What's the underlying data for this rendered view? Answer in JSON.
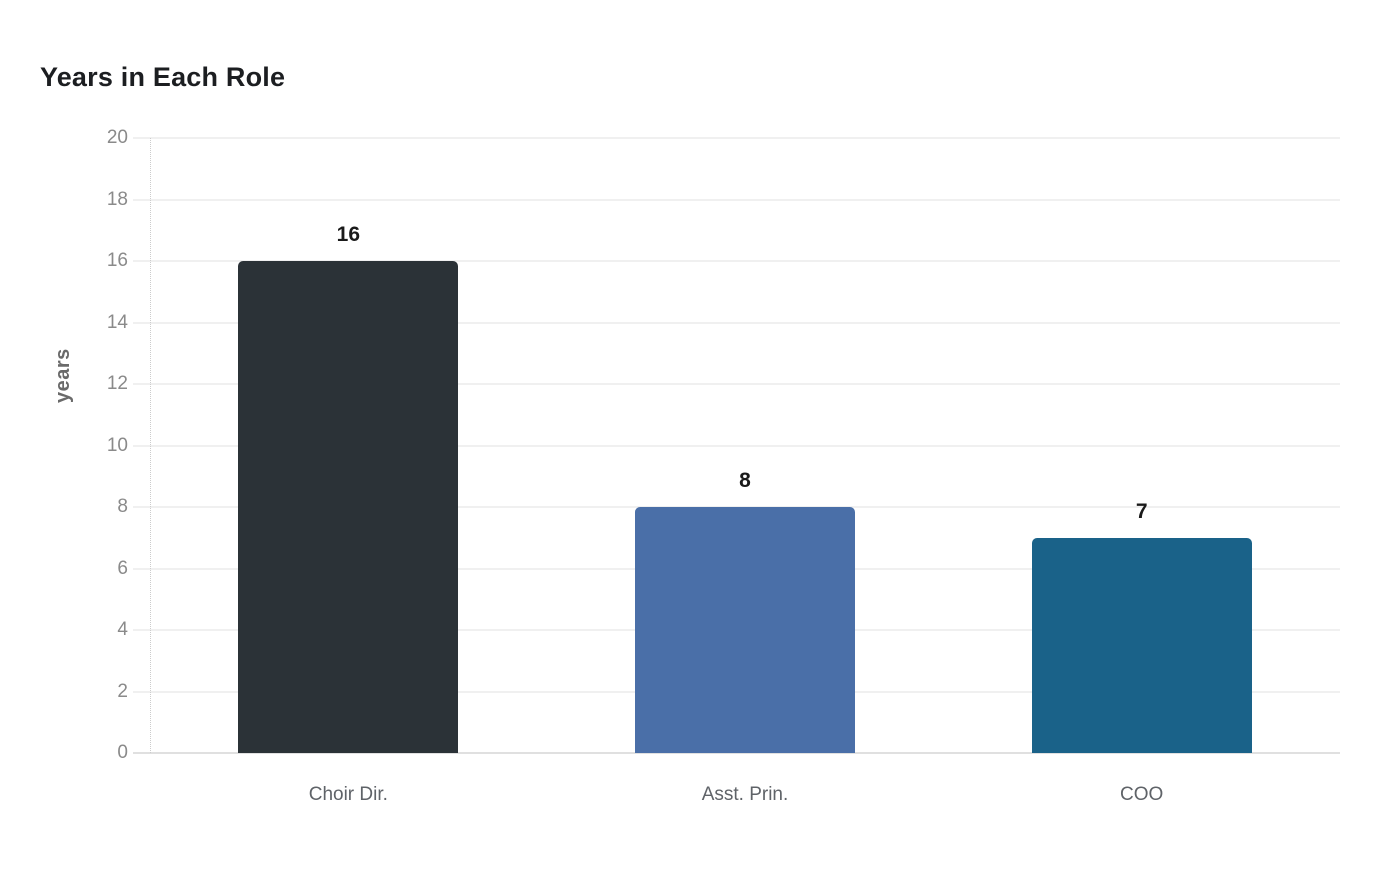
{
  "page": {
    "background": "#ffffff"
  },
  "chart_data": {
    "type": "bar",
    "title": "Years in Each Role",
    "categories": [
      "Choir Dir.",
      "Asst. Prin.",
      "COO"
    ],
    "values": [
      16,
      8,
      7
    ],
    "value_labels": [
      "16",
      "8",
      "7"
    ],
    "bar_colors": [
      "#2b3237",
      "#4a6fa8",
      "#1a6289"
    ],
    "xlabel": "",
    "ylabel": "years",
    "ylim": [
      0,
      20
    ],
    "yticks": [
      0,
      2,
      4,
      6,
      8,
      10,
      12,
      14,
      16,
      18,
      20
    ],
    "grid": true,
    "legend": false,
    "gridline_color": "#f0f0f0",
    "baseline_color": "#e0e0e0",
    "axis_line_style": "dotted",
    "tick_label_color": "#8a8a8a",
    "category_label_color": "#5f6368",
    "value_label_color": "#1a1a1a",
    "title_color": "#1c1e21"
  }
}
